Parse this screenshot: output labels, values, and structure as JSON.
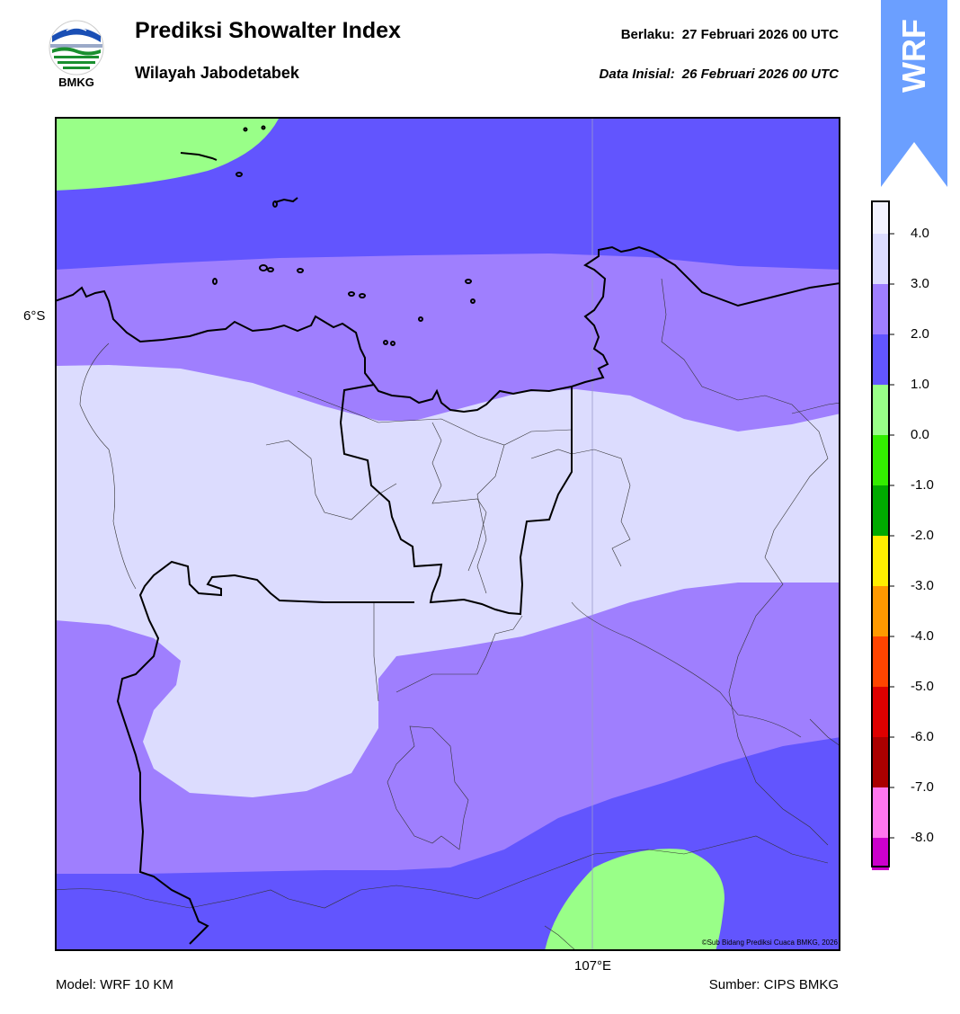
{
  "header": {
    "title": "Prediksi Showalter Index",
    "subtitle": "Wilayah Jabodetabek",
    "valid_label": "Berlaku:",
    "valid_time": "27 Februari 2026 00 UTC",
    "init_label": "Data Inisial:",
    "init_time": "26 Februari 2026 00 UTC"
  },
  "logo": {
    "text": "BMKG",
    "icon": "bmkg-logo"
  },
  "badge": {
    "text": "WRF",
    "color": "#6b9fff"
  },
  "map": {
    "lat_label": "6°S",
    "lon_label": "107°E",
    "copyright": "©Sub Bidang Prediksi Cuaca BMKG, 2026"
  },
  "footer": {
    "model": "Model: WRF 10 KM",
    "source": "Sumber: CIPS BMKG"
  },
  "colors": {
    "lavender": "#dcdcfe",
    "light_purple": "#9f7ffe",
    "blue": "#6255fe",
    "green": "#99ff88"
  },
  "legend": {
    "labels": [
      "4.0",
      "3.0",
      "2.0",
      "1.0",
      "0.0",
      "-1.0",
      "-2.0",
      "-3.0",
      "-4.0",
      "-5.0",
      "-6.0",
      "-7.0",
      "-8.0"
    ],
    "colors": [
      "#f2f2fe",
      "#dcdcfe",
      "#9f7ffe",
      "#6255fe",
      "#99ff88",
      "#33ee00",
      "#00aa00",
      "#ffee00",
      "#ff9900",
      "#ff4400",
      "#dd0000",
      "#aa0000",
      "#ff77ee",
      "#cc00cc",
      "#660066"
    ]
  }
}
